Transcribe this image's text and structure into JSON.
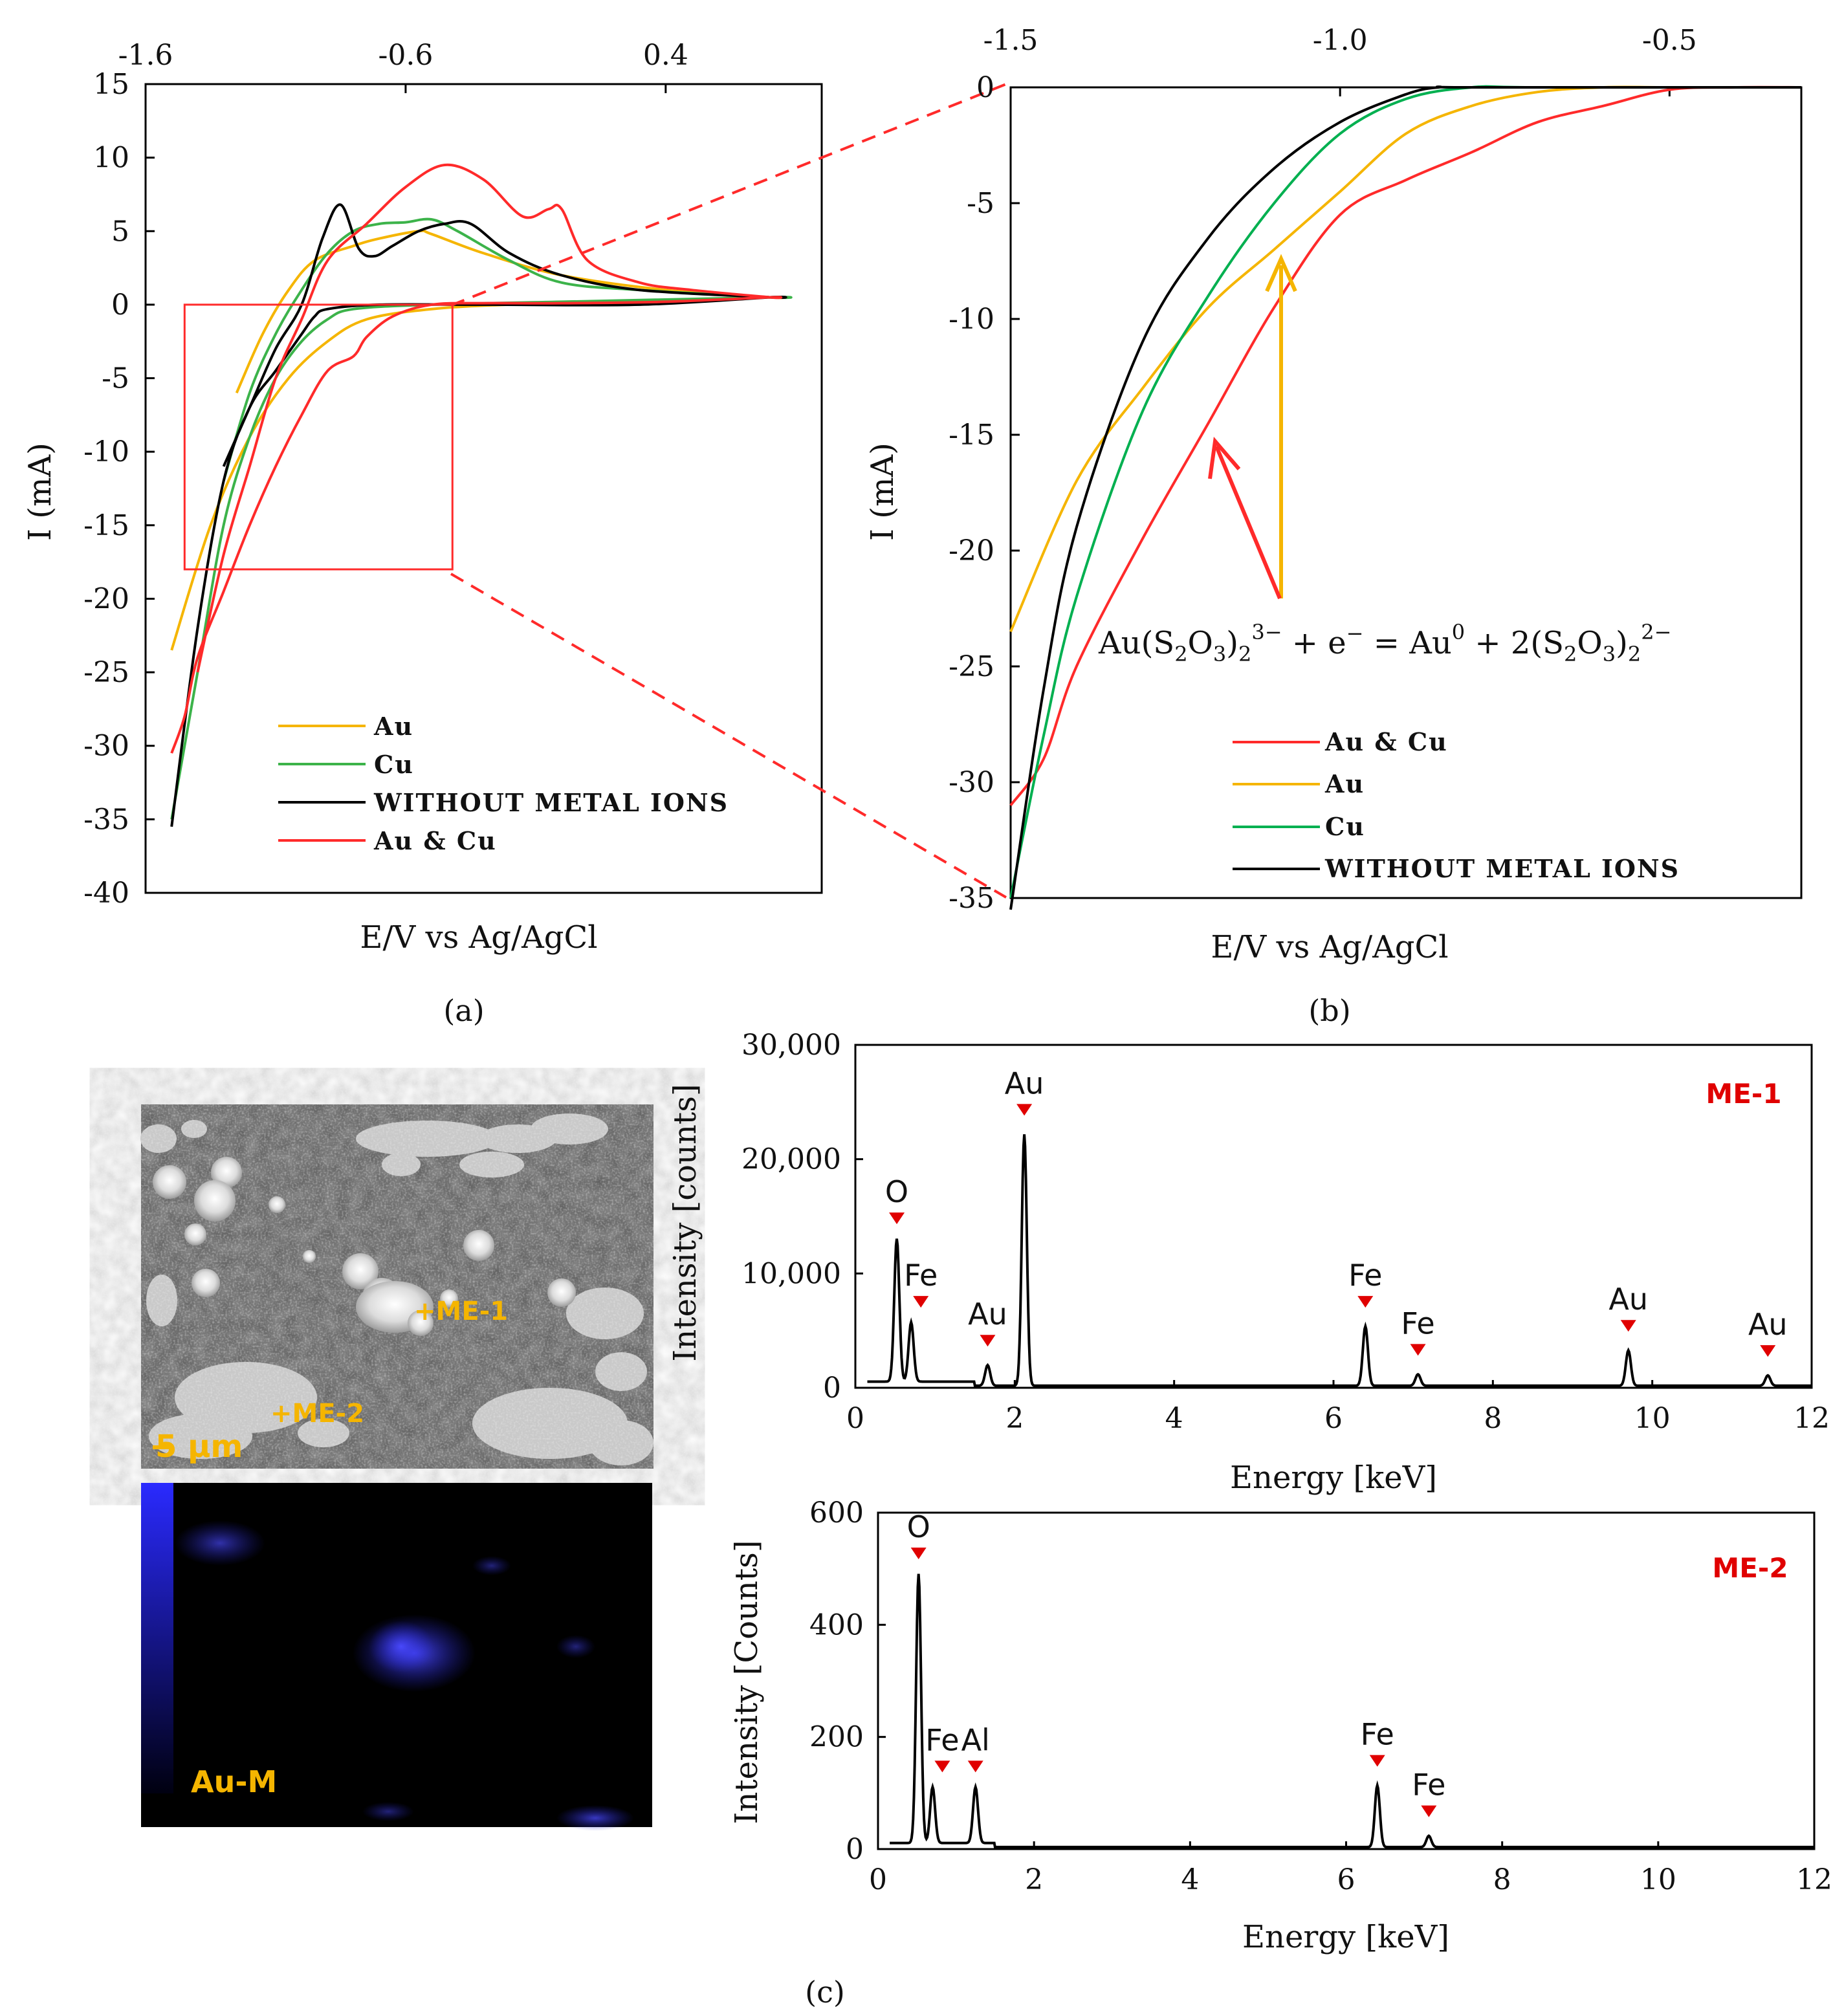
{
  "panels": {
    "a": "(a)",
    "b": "(b)",
    "c": "(c)"
  },
  "colors": {
    "au": "#f5b500",
    "cu_a": "#3cb34a",
    "cu_b": "#00b050",
    "none": "#000000",
    "aucu": "#ff2a2a",
    "marker": "#e00000",
    "label_orange": "#f5b500",
    "map_blue": "#2a2aff"
  },
  "chart_data": [
    {
      "id": "a",
      "type": "line",
      "xlabel": "E/V vs Ag/AgCl",
      "ylabel": "I (mA)",
      "xticks": [
        "-1.6",
        "-0.6",
        "0.4"
      ],
      "xtick_values": [
        -1.6,
        -0.6,
        0.4
      ],
      "xlim": [
        -1.6,
        1.0
      ],
      "yticks": [
        15,
        10,
        5,
        0,
        -5,
        -10,
        -15,
        -20,
        -25,
        -30,
        -35,
        -40
      ],
      "ylim": [
        -40,
        15
      ],
      "legend": [
        "Au",
        "Cu",
        "WITHOUT METAL IONS",
        "Au & Cu"
      ],
      "legend_position": "lower-left",
      "zoom_box": {
        "x": [
          -1.45,
          -0.42
        ],
        "y": [
          -18,
          0
        ]
      },
      "series": [
        {
          "name": "Au",
          "color_key": "au",
          "x": [
            -1.5,
            -1.35,
            -1.2,
            -1.05,
            -0.9,
            -0.75,
            -0.5,
            -0.2,
            0.3,
            0.8,
            0.8,
            0.4,
            0,
            -0.3,
            -0.5,
            -0.55,
            -0.7,
            -0.8,
            -0.95,
            -1.05,
            -1.15,
            -1.25
          ],
          "y": [
            -23.5,
            -15,
            -9,
            -5,
            -2.5,
            -1,
            -0.3,
            0,
            0.2,
            0.5,
            0.5,
            1,
            2,
            3.5,
            4.8,
            5,
            4.5,
            4,
            3,
            1,
            -2,
            -6
          ]
        },
        {
          "name": "Cu",
          "color_key": "cu_a",
          "x": [
            -1.5,
            -1.4,
            -1.3,
            -1.2,
            -1.1,
            -1,
            -0.9,
            -0.8,
            -0.5,
            0,
            0.8,
            0.8,
            0.3,
            0,
            -0.2,
            -0.4,
            -0.5,
            -0.6,
            -0.7,
            -0.8,
            -0.9,
            -1.0,
            -1.1,
            -1.2,
            -1.3
          ],
          "y": [
            -35,
            -25,
            -15,
            -9,
            -5,
            -2.5,
            -1,
            -0.3,
            0,
            0.2,
            0.5,
            0.5,
            1,
            1.5,
            3,
            5,
            5.8,
            5.6,
            5.5,
            5,
            3.5,
            1,
            -2,
            -6,
            -12
          ]
        },
        {
          "name": "WITHOUT METAL IONS",
          "color_key": "none",
          "x": [
            -1.5,
            -1.4,
            -1.3,
            -1.2,
            -1.1,
            -1.0,
            -0.95,
            -0.9,
            -0.7,
            -0.3,
            0.3,
            0.8,
            0.8,
            0.3,
            0,
            -0.2,
            -0.35,
            -0.45,
            -0.55,
            -0.65,
            -0.72,
            -0.78,
            -0.85,
            -0.92,
            -1.0,
            -1.1,
            -1.2,
            -1.3
          ],
          "y": [
            -35.5,
            -22,
            -12,
            -7,
            -4.5,
            -2,
            -0.8,
            -0.3,
            0,
            0,
            0,
            0.5,
            0.5,
            1,
            2,
            3.5,
            5.5,
            5.5,
            5,
            4,
            3.3,
            3.8,
            6.8,
            4.5,
            0,
            -3,
            -7,
            -11
          ]
        },
        {
          "name": "Au & Cu",
          "color_key": "aucu",
          "x": [
            -1.5,
            -1.45,
            -1.4,
            -1.3,
            -1.2,
            -1.1,
            -1.0,
            -0.9,
            -0.8,
            -0.75,
            -0.65,
            -0.5,
            -0.3,
            0,
            0.4,
            0.8,
            0.8,
            0.5,
            0.3,
            0.1,
            0,
            -0.05,
            -0.15,
            -0.3,
            -0.45,
            -0.6,
            -0.75,
            -0.9,
            -1.0,
            -1.1,
            -1.2,
            -1.3,
            -1.4
          ],
          "y": [
            -30.5,
            -28,
            -24,
            -19.5,
            -15,
            -11,
            -7.5,
            -4.5,
            -3.5,
            -2.2,
            -0.8,
            0,
            0.1,
            0.1,
            0.2,
            0.5,
            0.5,
            1,
            1.5,
            3,
            6.5,
            6.5,
            6,
            8.5,
            9.5,
            8,
            5.5,
            3,
            -1,
            -5,
            -11,
            -17,
            -25
          ]
        }
      ]
    },
    {
      "id": "b",
      "type": "line",
      "xlabel": "E/V vs Ag/AgCl",
      "ylabel": "I (mA)",
      "xticks": [
        "-1.5",
        "-1.0",
        "-0.5"
      ],
      "xtick_values": [
        -1.5,
        -1.0,
        -0.5
      ],
      "xlim": [
        -1.5,
        -0.3
      ],
      "yticks": [
        0,
        -5,
        -10,
        -15,
        -20,
        -25,
        -30,
        -35
      ],
      "ylim": [
        -35,
        0
      ],
      "legend": [
        "Au & Cu",
        "Au",
        "Cu",
        "WITHOUT METAL IONS"
      ],
      "legend_position": "bottom-center",
      "annotation": {
        "left": "Au(S",
        "sub1": "2",
        "mid1": "O",
        "sub2": "3",
        "close": ")",
        "sub3": "2",
        "sup1": "3−",
        "mid2": " +  e",
        "sup2": "−",
        "mid3": " = Au",
        "sup3": "0",
        "mid4": " + 2(S",
        "sub4": "2",
        "mid5": "O",
        "sub5": "3",
        "close2": ")",
        "sub6": "2",
        "sup4": "2−"
      },
      "series": [
        {
          "name": "Au & Cu",
          "color_key": "aucu",
          "x": [
            -1.5,
            -1.45,
            -1.4,
            -1.3,
            -1.2,
            -1.1,
            -1.0,
            -0.9,
            -0.8,
            -0.7,
            -0.6,
            -0.5,
            -0.4,
            -0.3
          ],
          "y": [
            -31,
            -29,
            -25,
            -19.5,
            -14.5,
            -9.5,
            -5.5,
            -4,
            -2.8,
            -1.5,
            -0.8,
            -0.1,
            0,
            0
          ]
        },
        {
          "name": "Au",
          "color_key": "au",
          "x": [
            -1.5,
            -1.4,
            -1.3,
            -1.2,
            -1.1,
            -1.0,
            -0.9,
            -0.8,
            -0.7,
            -0.6,
            -0.5,
            -0.3
          ],
          "y": [
            -23.5,
            -17,
            -13,
            -9.5,
            -7,
            -4.5,
            -2,
            -0.8,
            -0.2,
            0,
            0,
            0
          ]
        },
        {
          "name": "Cu",
          "color_key": "cu_b",
          "x": [
            -1.5,
            -1.45,
            -1.4,
            -1.3,
            -1.2,
            -1.1,
            -1.0,
            -0.9,
            -0.8,
            -0.7,
            -0.3
          ],
          "y": [
            -35,
            -28,
            -22,
            -14,
            -9,
            -5,
            -2,
            -0.5,
            0,
            0,
            0
          ]
        },
        {
          "name": "WITHOUT METAL IONS",
          "color_key": "none",
          "x": [
            -1.5,
            -1.45,
            -1.4,
            -1.3,
            -1.2,
            -1.1,
            -1.0,
            -0.9,
            -0.85,
            -0.8,
            -0.3
          ],
          "y": [
            -35.5,
            -26,
            -19,
            -11,
            -6.5,
            -3.5,
            -1.5,
            -0.3,
            0,
            0,
            0
          ]
        }
      ]
    },
    {
      "id": "c1",
      "type": "line",
      "xlabel": "Energy [keV]",
      "ylabel": "Intensity [counts]",
      "xticks": [
        "0",
        "2",
        "4",
        "6",
        "8",
        "10",
        "12"
      ],
      "xtick_values": [
        0,
        2,
        4,
        6,
        8,
        10,
        12
      ],
      "xlim": [
        0,
        12
      ],
      "yticks": [
        "0",
        "10,000",
        "20,000",
        "30,000"
      ],
      "ytick_values": [
        0,
        10000,
        20000,
        30000
      ],
      "ylim": [
        0,
        30000
      ],
      "tag": "ME-1",
      "peaks": [
        {
          "label": "O",
          "x": 0.52,
          "y": 12500
        },
        {
          "label": "Fe",
          "x": 0.7,
          "y": 5200
        },
        {
          "label": "Au",
          "x": 1.66,
          "y": 1800
        },
        {
          "label": "Au",
          "x": 2.12,
          "y": 22000
        },
        {
          "label": "Fe",
          "x": 6.4,
          "y": 5200
        },
        {
          "label": "Fe",
          "x": 7.06,
          "y": 1000
        },
        {
          "label": "Au",
          "x": 9.7,
          "y": 3100
        },
        {
          "label": "Au",
          "x": 11.45,
          "y": 900
        }
      ]
    },
    {
      "id": "c2",
      "type": "line",
      "xlabel": "Energy [keV]",
      "ylabel": "Intensity [Counts]",
      "xticks": [
        "0",
        "2",
        "4",
        "6",
        "8",
        "10",
        "12"
      ],
      "xtick_values": [
        0,
        2,
        4,
        6,
        8,
        10,
        12
      ],
      "xlim": [
        0,
        12
      ],
      "yticks": [
        "0",
        "200",
        "400",
        "600"
      ],
      "ytick_values": [
        0,
        200,
        400,
        600
      ],
      "ylim": [
        0,
        600
      ],
      "tag": "ME-2",
      "peaks": [
        {
          "label": "O",
          "x": 0.52,
          "y": 480
        },
        {
          "label": "Fe",
          "x": 0.7,
          "y": 100
        },
        {
          "label": "Al",
          "x": 1.25,
          "y": 100
        },
        {
          "label": "Fe",
          "x": 6.4,
          "y": 110
        },
        {
          "label": "Fe",
          "x": 7.06,
          "y": 20
        }
      ]
    }
  ],
  "sem": {
    "labels": [
      "+ME-1",
      "+ME-2"
    ],
    "scale": "5 µm",
    "map_label": "Au-M"
  }
}
